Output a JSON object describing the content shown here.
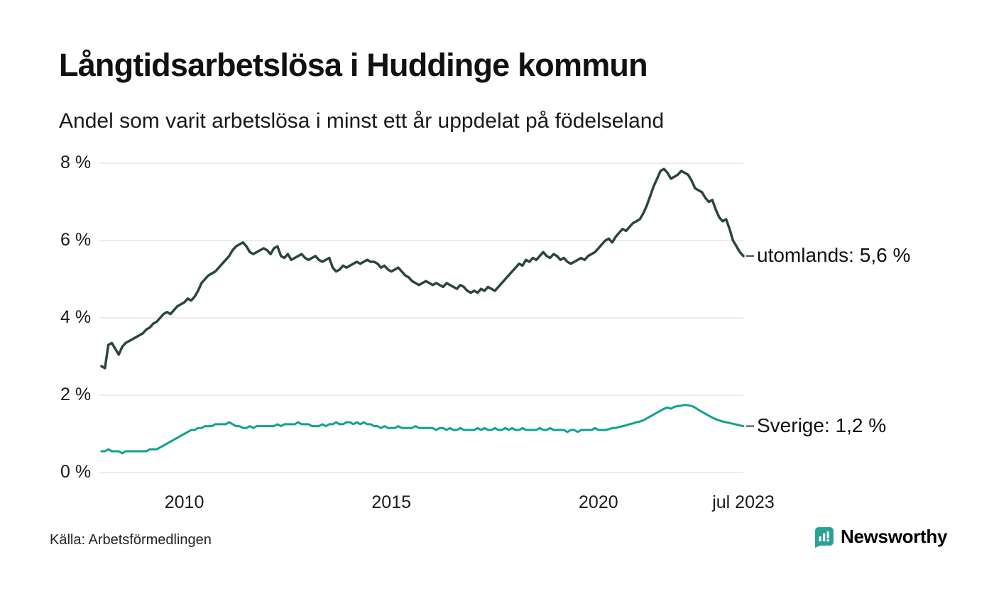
{
  "header": {
    "title": "Långtidsarbetslösa i Huddinge kommun",
    "subtitle": "Andel som varit arbetslösa i minst ett år uppdelat på födelseland"
  },
  "footer": {
    "source": "Källa: Arbetsförmedlingen",
    "brand": "Newsworthy",
    "brand_color": "#2d8c80",
    "brand_icon_color": "#2ba193",
    "brand_icon": "newsworthy-chart-bubble"
  },
  "chart_data": {
    "type": "line",
    "title": "Långtidsarbetslösa i Huddinge kommun",
    "subtitle": "Andel som varit arbetslösa i minst ett år uppdelat på födelseland",
    "xlabel": "",
    "ylabel": "",
    "grid": true,
    "legend": "line-end-labels",
    "xlim": [
      2007.95,
      2023.5
    ],
    "ylim": [
      0,
      8
    ],
    "x_start": 2008.0,
    "x_step": 0.0833333,
    "y_ticks": [
      {
        "value": 8,
        "label": "8 %"
      },
      {
        "value": 6,
        "label": "6 %"
      },
      {
        "value": 4,
        "label": "4 %"
      },
      {
        "value": 2,
        "label": "2 %"
      },
      {
        "value": 0,
        "label": "0 %"
      }
    ],
    "x_ticks": [
      {
        "value": 2010,
        "label": "2010"
      },
      {
        "value": 2015,
        "label": "2015"
      },
      {
        "value": 2020,
        "label": "2020"
      },
      {
        "value": 2023.5,
        "label": "jul 2023"
      }
    ],
    "series": [
      {
        "name": "utomlands",
        "end_label": "utomlands: 5,6 %",
        "last_value": 5.6,
        "color": "#2a453f",
        "stroke_width": 3.5,
        "values": [
          2.75,
          2.7,
          3.3,
          3.35,
          3.2,
          3.05,
          3.25,
          3.35,
          3.4,
          3.45,
          3.5,
          3.55,
          3.6,
          3.7,
          3.75,
          3.85,
          3.9,
          4.0,
          4.1,
          4.15,
          4.1,
          4.2,
          4.3,
          4.35,
          4.4,
          4.5,
          4.45,
          4.55,
          4.7,
          4.9,
          5.0,
          5.1,
          5.15,
          5.2,
          5.3,
          5.4,
          5.5,
          5.6,
          5.75,
          5.85,
          5.9,
          5.95,
          5.85,
          5.7,
          5.65,
          5.7,
          5.75,
          5.8,
          5.75,
          5.65,
          5.8,
          5.85,
          5.6,
          5.55,
          5.65,
          5.5,
          5.55,
          5.6,
          5.65,
          5.55,
          5.5,
          5.55,
          5.6,
          5.5,
          5.45,
          5.5,
          5.55,
          5.3,
          5.2,
          5.25,
          5.35,
          5.3,
          5.35,
          5.4,
          5.45,
          5.4,
          5.45,
          5.5,
          5.45,
          5.45,
          5.4,
          5.3,
          5.35,
          5.25,
          5.2,
          5.25,
          5.3,
          5.2,
          5.1,
          5.05,
          4.95,
          4.9,
          4.85,
          4.9,
          4.95,
          4.9,
          4.85,
          4.9,
          4.85,
          4.8,
          4.9,
          4.85,
          4.8,
          4.75,
          4.85,
          4.8,
          4.7,
          4.65,
          4.7,
          4.65,
          4.75,
          4.7,
          4.8,
          4.75,
          4.7,
          4.8,
          4.9,
          5.0,
          5.1,
          5.2,
          5.3,
          5.4,
          5.35,
          5.5,
          5.45,
          5.55,
          5.5,
          5.6,
          5.7,
          5.6,
          5.55,
          5.65,
          5.6,
          5.5,
          5.55,
          5.45,
          5.4,
          5.45,
          5.5,
          5.55,
          5.5,
          5.6,
          5.65,
          5.7,
          5.8,
          5.9,
          6.0,
          6.05,
          5.95,
          6.1,
          6.2,
          6.3,
          6.25,
          6.35,
          6.45,
          6.5,
          6.55,
          6.7,
          6.9,
          7.15,
          7.4,
          7.6,
          7.8,
          7.85,
          7.75,
          7.6,
          7.65,
          7.7,
          7.8,
          7.75,
          7.7,
          7.55,
          7.35,
          7.3,
          7.25,
          7.1,
          7.0,
          7.05,
          6.8,
          6.6,
          6.5,
          6.55,
          6.3,
          6.0,
          5.85,
          5.7,
          5.6
        ]
      },
      {
        "name": "Sverige",
        "end_label": "Sverige: 1,2 %",
        "last_value": 1.2,
        "color": "#12a192",
        "stroke_width": 3,
        "values": [
          0.55,
          0.55,
          0.6,
          0.55,
          0.55,
          0.55,
          0.5,
          0.55,
          0.55,
          0.55,
          0.55,
          0.55,
          0.55,
          0.55,
          0.6,
          0.6,
          0.6,
          0.65,
          0.7,
          0.75,
          0.8,
          0.85,
          0.9,
          0.95,
          1.0,
          1.05,
          1.1,
          1.1,
          1.15,
          1.15,
          1.2,
          1.2,
          1.2,
          1.25,
          1.25,
          1.25,
          1.25,
          1.3,
          1.25,
          1.2,
          1.2,
          1.15,
          1.15,
          1.2,
          1.15,
          1.2,
          1.2,
          1.2,
          1.2,
          1.2,
          1.2,
          1.25,
          1.2,
          1.25,
          1.25,
          1.25,
          1.25,
          1.3,
          1.25,
          1.25,
          1.25,
          1.2,
          1.2,
          1.2,
          1.25,
          1.2,
          1.25,
          1.25,
          1.3,
          1.25,
          1.25,
          1.3,
          1.3,
          1.25,
          1.3,
          1.25,
          1.3,
          1.25,
          1.25,
          1.2,
          1.2,
          1.15,
          1.2,
          1.15,
          1.15,
          1.15,
          1.2,
          1.15,
          1.15,
          1.15,
          1.15,
          1.2,
          1.15,
          1.15,
          1.15,
          1.15,
          1.15,
          1.1,
          1.15,
          1.15,
          1.1,
          1.15,
          1.1,
          1.1,
          1.15,
          1.1,
          1.1,
          1.1,
          1.1,
          1.15,
          1.1,
          1.15,
          1.1,
          1.1,
          1.15,
          1.1,
          1.1,
          1.15,
          1.1,
          1.15,
          1.1,
          1.1,
          1.15,
          1.1,
          1.1,
          1.1,
          1.1,
          1.15,
          1.1,
          1.1,
          1.15,
          1.1,
          1.1,
          1.1,
          1.1,
          1.05,
          1.1,
          1.1,
          1.05,
          1.1,
          1.1,
          1.1,
          1.1,
          1.15,
          1.1,
          1.1,
          1.1,
          1.12,
          1.15,
          1.15,
          1.18,
          1.2,
          1.22,
          1.25,
          1.27,
          1.3,
          1.32,
          1.35,
          1.4,
          1.45,
          1.5,
          1.55,
          1.6,
          1.65,
          1.68,
          1.65,
          1.7,
          1.72,
          1.73,
          1.75,
          1.74,
          1.72,
          1.68,
          1.62,
          1.57,
          1.52,
          1.47,
          1.42,
          1.38,
          1.35,
          1.32,
          1.3,
          1.28,
          1.26,
          1.24,
          1.22,
          1.2
        ]
      }
    ]
  }
}
